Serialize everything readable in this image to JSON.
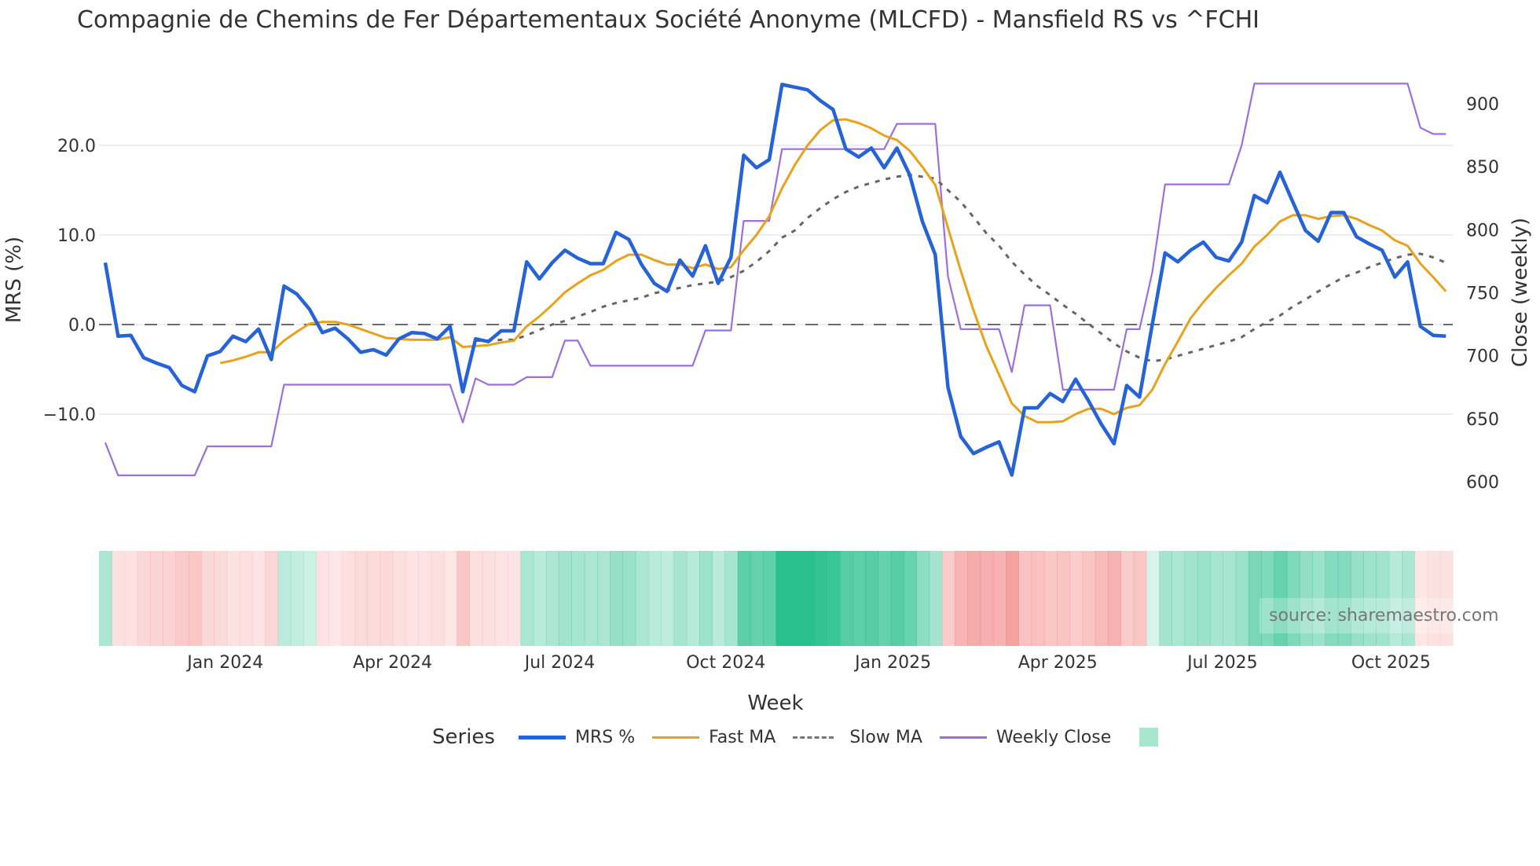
{
  "title": "Compagnie de Chemins de Fer Départementaux Société Anonyme (MLCFD) - Mansfield RS vs ^FCHI",
  "source_note": "source: sharemaestro.com",
  "legend": {
    "title": "Series",
    "items": [
      {
        "label": "MRS %",
        "color": "#2563d6",
        "style": "solid",
        "width": 4
      },
      {
        "label": "Fast MA",
        "color": "#e8a21c",
        "style": "solid",
        "width": 3
      },
      {
        "label": "Slow MA",
        "color": "#666666",
        "style": "dotted",
        "width": 3
      },
      {
        "label": "Weekly Close",
        "color": "#9b6fdd",
        "style": "solid",
        "width": 2
      },
      {
        "label": "",
        "color": "#a8e6cf",
        "style": "box"
      }
    ]
  },
  "colors": {
    "mrs": "#2563d6",
    "fast_ma": "#e8a21c",
    "slow_ma": "#666666",
    "weekly_close": "#9b6fdd",
    "heat_positive": "38,191,140",
    "heat_negative": "242,120,120",
    "grid": "#ebedf3",
    "zero_line": "#6b6b6b"
  },
  "chart_data": {
    "type": "line",
    "title": "Compagnie de Chemins de Fer Départementaux Société Anonyme (MLCFD) - Mansfield RS vs ^FCHI",
    "xlabel": "Week",
    "ylabel": "MRS (%)",
    "y2label": "Close (weekly)",
    "x_tick_labels": [
      "Jan 2024",
      "Apr 2024",
      "Jul 2024",
      "Oct 2024",
      "Jan 2025",
      "Apr 2025",
      "Jul 2025",
      "Oct 2025"
    ],
    "x_tick_index": [
      9.4,
      22.5,
      35.6,
      48.6,
      61.7,
      74.6,
      87.5,
      100.7
    ],
    "y_ticks": [
      -10,
      0,
      10,
      20
    ],
    "y_tick_labels": [
      "−10.0",
      "0.0",
      "10.0",
      "20.0"
    ],
    "y2_ticks": [
      600,
      650,
      700,
      750,
      800,
      850,
      900
    ],
    "y2_tick_labels": [
      "600",
      "650",
      "700",
      "750",
      "800",
      "850",
      "900"
    ],
    "ylim": [
      -20.5,
      29
    ],
    "y2lim": [
      570,
      935
    ],
    "grid": true,
    "legend_position": "bottom",
    "zero_line": "dashed",
    "series": [
      {
        "name": "MRS %",
        "axis": "y",
        "values": [
          6.9,
          -1.3,
          -1.2,
          -3.7,
          -4.3,
          -4.8,
          -6.8,
          -7.5,
          -3.5,
          -3.0,
          -1.3,
          -1.9,
          -0.5,
          -3.9,
          4.3,
          3.4,
          1.7,
          -0.9,
          -0.4,
          -1.6,
          -3.1,
          -2.8,
          -3.4,
          -1.6,
          -0.9,
          -1.0,
          -1.6,
          -0.2,
          -7.5,
          -1.6,
          -1.9,
          -0.7,
          -0.7,
          7.0,
          5.1,
          6.9,
          8.3,
          7.4,
          6.8,
          6.8,
          10.3,
          9.5,
          6.7,
          4.6,
          3.7,
          7.2,
          5.4,
          8.8,
          4.6,
          7.5,
          18.9,
          17.5,
          18.4,
          26.8,
          26.5,
          26.2,
          25.0,
          24.0,
          19.6,
          18.7,
          19.7,
          17.5,
          19.7,
          16.7,
          11.5,
          7.8,
          -7.0,
          -12.5,
          -14.4,
          -13.7,
          -13.1,
          -16.8,
          -9.3,
          -9.3,
          -7.7,
          -8.6,
          -6.1,
          -8.5,
          -11.1,
          -13.3,
          -6.8,
          -8.1,
          0.0,
          8.0,
          7.0,
          8.3,
          9.2,
          7.5,
          7.1,
          9.2,
          14.4,
          13.6,
          17.0,
          13.7,
          10.5,
          9.3,
          12.5,
          12.5,
          9.8,
          9.0,
          8.3,
          5.3,
          7.0,
          -0.2,
          -1.2,
          -1.3
        ]
      },
      {
        "name": "Fast MA",
        "axis": "y",
        "values": [
          null,
          null,
          null,
          null,
          null,
          null,
          null,
          null,
          null,
          -4.3,
          -4.0,
          -3.6,
          -3.1,
          -3.1,
          -1.8,
          -0.8,
          0.1,
          0.3,
          0.3,
          0.0,
          -0.5,
          -1.0,
          -1.5,
          -1.6,
          -1.7,
          -1.7,
          -1.7,
          -1.4,
          -2.5,
          -2.4,
          -2.3,
          -2.0,
          -1.8,
          -0.2,
          0.9,
          2.2,
          3.6,
          4.6,
          5.5,
          6.1,
          7.1,
          7.8,
          7.8,
          7.2,
          6.7,
          6.7,
          6.3,
          6.7,
          6.2,
          6.4,
          8.3,
          10.0,
          12.1,
          15.2,
          17.8,
          20.0,
          21.7,
          22.8,
          22.9,
          22.5,
          21.9,
          21.1,
          20.6,
          19.4,
          17.6,
          15.6,
          10.8,
          6.0,
          1.6,
          -2.4,
          -5.6,
          -8.8,
          -10.2,
          -10.9,
          -10.9,
          -10.8,
          -10.0,
          -9.4,
          -9.4,
          -10.0,
          -9.3,
          -9.0,
          -7.3,
          -4.4,
          -1.9,
          0.7,
          2.5,
          4.1,
          5.5,
          6.8,
          8.7,
          10.0,
          11.5,
          12.2,
          12.2,
          11.8,
          12.1,
          12.2,
          11.8,
          11.1,
          10.5,
          9.4,
          8.8,
          6.8,
          5.3,
          3.7
        ]
      },
      {
        "name": "Slow MA",
        "axis": "y",
        "values": [
          null,
          null,
          null,
          null,
          null,
          null,
          null,
          null,
          null,
          null,
          null,
          null,
          null,
          null,
          null,
          null,
          null,
          null,
          null,
          null,
          null,
          null,
          null,
          null,
          null,
          null,
          null,
          null,
          null,
          -1.8,
          -1.8,
          -1.7,
          -1.7,
          -1.2,
          -0.6,
          0.0,
          0.4,
          0.9,
          1.4,
          2.0,
          2.4,
          2.7,
          3.0,
          3.5,
          3.8,
          4.1,
          4.4,
          4.6,
          4.8,
          5.3,
          6.0,
          7.0,
          8.2,
          9.7,
          10.5,
          11.9,
          13.0,
          14.0,
          14.8,
          15.4,
          15.8,
          16.2,
          16.5,
          16.7,
          16.5,
          16.3,
          15.0,
          13.7,
          12.0,
          10.2,
          8.8,
          7.0,
          5.6,
          4.3,
          3.3,
          2.2,
          1.2,
          0.1,
          -1.0,
          -2.1,
          -3.0,
          -3.7,
          -4.1,
          -3.9,
          -3.5,
          -3.1,
          -2.7,
          -2.3,
          -1.9,
          -1.4,
          -0.5,
          0.3,
          1.0,
          2.0,
          2.8,
          3.7,
          4.5,
          5.3,
          5.8,
          6.4,
          6.9,
          7.4,
          7.8,
          7.9,
          7.5,
          6.9
        ]
      },
      {
        "name": "Weekly Close",
        "axis": "y2",
        "values": [
          631,
          605,
          605,
          605,
          605,
          605,
          605,
          605,
          628,
          628,
          628,
          628,
          628,
          628,
          677,
          677,
          677,
          677,
          677,
          677,
          677,
          677,
          677,
          677,
          677,
          677,
          677,
          677,
          647,
          682,
          677,
          677,
          677,
          683,
          683,
          683,
          712,
          712,
          692,
          692,
          692,
          692,
          692,
          692,
          692,
          692,
          692,
          720,
          720,
          720,
          807,
          807,
          807,
          864,
          864,
          864,
          864,
          864,
          864,
          864,
          864,
          864,
          884,
          884,
          884,
          884,
          763,
          721,
          721,
          721,
          721,
          687,
          740,
          740,
          740,
          673,
          673,
          673,
          673,
          673,
          721,
          721,
          766,
          836,
          836,
          836,
          836,
          836,
          836,
          867,
          916,
          916,
          916,
          916,
          916,
          916,
          916,
          916,
          916,
          916,
          916,
          916,
          916,
          881,
          876,
          876
        ]
      }
    ]
  }
}
